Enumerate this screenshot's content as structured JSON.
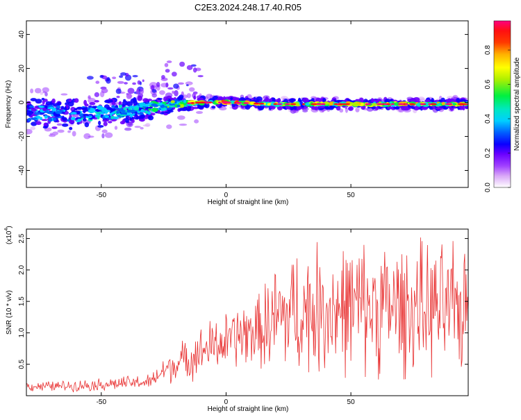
{
  "title": "C2E3.2024.248.17.40.R05",
  "chart_data": [
    {
      "type": "heatmap",
      "xlabel": "Height of straight line (km)",
      "ylabel": "Frequency (Hz)",
      "xlim": [
        -80,
        97
      ],
      "ylim": [
        -50,
        48
      ],
      "xticks": [
        -50,
        0,
        50
      ],
      "yticks": [
        -40,
        -20,
        0,
        20,
        40
      ],
      "colorbar": {
        "label": "Normalized spectral amplitude",
        "range": [
          0,
          0.97
        ],
        "ticks": [
          "0.0",
          "0.2",
          "0.4",
          "0.6",
          "0.8"
        ],
        "tick_values": [
          0.0,
          0.2,
          0.4,
          0.6,
          0.8
        ]
      },
      "ridge": [
        {
          "x": -80,
          "f": -6,
          "spread": 7,
          "amp": 0.35
        },
        {
          "x": -60,
          "f": -7,
          "spread": 7,
          "amp": 0.4
        },
        {
          "x": -45,
          "f": -6,
          "spread": 6,
          "amp": 0.4
        },
        {
          "x": -30,
          "f": -3,
          "spread": 5,
          "amp": 0.45
        },
        {
          "x": -20,
          "f": -1,
          "spread": 3,
          "amp": 0.55
        },
        {
          "x": -10,
          "f": 0,
          "spread": 1.5,
          "amp": 0.7
        },
        {
          "x": 0,
          "f": 0,
          "spread": 1.2,
          "amp": 0.85
        },
        {
          "x": 20,
          "f": -1,
          "spread": 1.2,
          "amp": 0.65
        },
        {
          "x": 50,
          "f": -1,
          "spread": 1.2,
          "amp": 0.7
        },
        {
          "x": 75,
          "f": -1,
          "spread": 1.2,
          "amp": 0.7
        },
        {
          "x": 97,
          "f": -1,
          "spread": 1.2,
          "amp": 0.7
        }
      ]
    },
    {
      "type": "line",
      "xlabel": "Height of straight line (km)",
      "ylabel": "SNR (10 * v/v)",
      "y_multiplier": "(x10",
      "y_multiplier_exp": "4",
      "xlim": [
        -80,
        97
      ],
      "ylim": [
        0,
        2.65
      ],
      "xticks": [
        -50,
        0,
        50
      ],
      "yticks": [
        0.5,
        1.0,
        1.5,
        2.0,
        2.5
      ],
      "ytick_labels": [
        "0.5",
        "1.0",
        "1.5",
        "2.0",
        "2.5"
      ],
      "color": "#e83030",
      "series": [
        {
          "x": [
            -80,
            -70,
            -60,
            -50,
            -40,
            -30,
            -25,
            -20,
            -15,
            -10,
            -5,
            0,
            5,
            10,
            15,
            20,
            25,
            30,
            40,
            50,
            60,
            70,
            80,
            90,
            97
          ],
          "y": [
            0.15,
            0.15,
            0.16,
            0.18,
            0.2,
            0.22,
            0.4,
            0.5,
            0.6,
            0.7,
            0.8,
            0.85,
            0.95,
            1.0,
            1.05,
            1.2,
            1.3,
            1.35,
            1.38,
            1.4,
            1.42,
            1.4,
            1.38,
            1.35,
            1.4
          ]
        }
      ]
    }
  ]
}
